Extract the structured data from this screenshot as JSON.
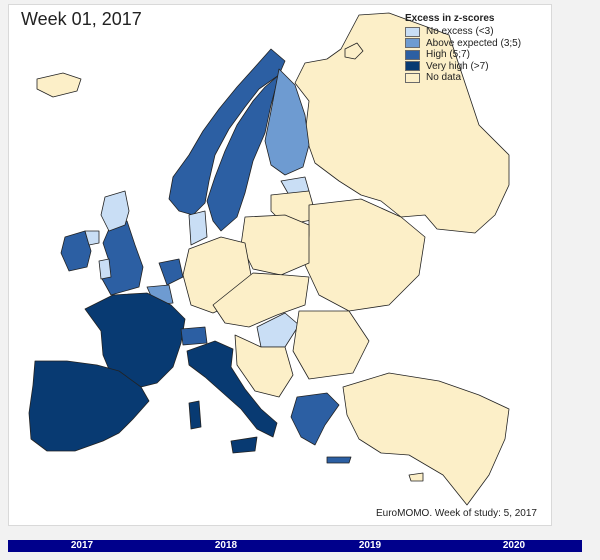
{
  "map": {
    "title": "Week 01, 2017",
    "credit": "EuroMOMO. Week of study: 5, 2017"
  },
  "legend": {
    "title": "Excess in z-scores",
    "items": [
      {
        "label": "No excess (<3)",
        "color": "#c9def5"
      },
      {
        "label": "Above expected (3;5)",
        "color": "#6e9bd1"
      },
      {
        "label": "High (5;7)",
        "color": "#2c5fa3"
      },
      {
        "label": "Very high (>7)",
        "color": "#083a72"
      },
      {
        "label": "No data",
        "color": "#fcefc8"
      }
    ]
  },
  "colors": {
    "no_data": "#fcefc8",
    "no_excess": "#c9def5",
    "above_expected": "#6e9bd1",
    "high": "#2c5fa3",
    "very_high": "#083a72",
    "border": "#222222"
  },
  "timeline": {
    "years": [
      "2017",
      "2018",
      "2019",
      "2020"
    ]
  }
}
